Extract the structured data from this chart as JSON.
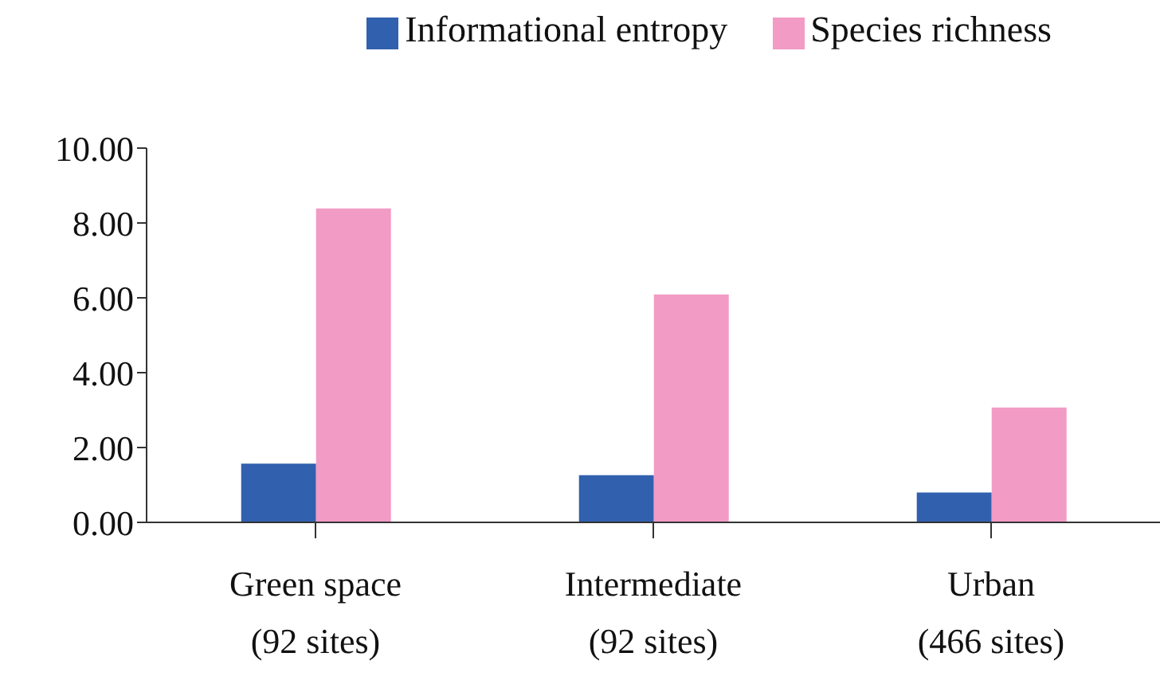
{
  "chart_data": {
    "type": "bar",
    "categories": [
      "Green space\n(92 sites)",
      "Intermediate\n(92 sites)",
      "Urban\n(466 sites)"
    ],
    "series": [
      {
        "name": "Informational entropy",
        "color": "#3160ae",
        "values": [
          1.57,
          1.26,
          0.8
        ]
      },
      {
        "name": "Species richness",
        "color": "#f19bc5",
        "values": [
          8.39,
          6.09,
          3.07
        ]
      }
    ],
    "ylim": [
      0,
      10
    ],
    "yticks": [
      {
        "value": 0,
        "label": "0.00"
      },
      {
        "value": 2,
        "label": "2.00"
      },
      {
        "value": 4,
        "label": "4.00"
      },
      {
        "value": 6,
        "label": "6.00"
      },
      {
        "value": 8,
        "label": "8.00"
      },
      {
        "value": 10,
        "label": "10.00"
      }
    ],
    "grid": false,
    "legend": "top right"
  }
}
